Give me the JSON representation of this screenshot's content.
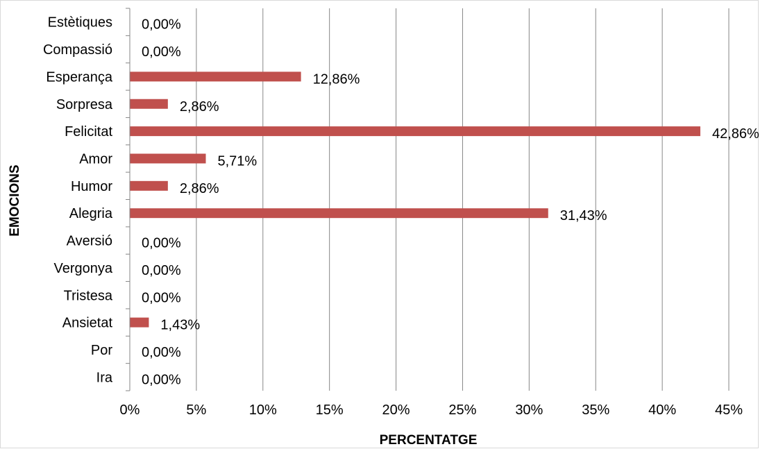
{
  "chart_data": {
    "type": "bar",
    "orientation": "horizontal",
    "categories": [
      "Estètiques",
      "Compassió",
      "Esperança",
      "Sorpresa",
      "Felicitat",
      "Amor",
      "Humor",
      "Alegria",
      "Aversió",
      "Vergonya",
      "Tristesa",
      "Ansietat",
      "Por",
      "Ira"
    ],
    "values": [
      0,
      0,
      12.86,
      2.86,
      42.86,
      5.71,
      2.86,
      31.43,
      0,
      0,
      0,
      1.43,
      0,
      0
    ],
    "value_labels": [
      "0,00%",
      "0,00%",
      "12,86%",
      "2,86%",
      "42,86%",
      "5,71%",
      "2,86%",
      "31,43%",
      "0,00%",
      "0,00%",
      "0,00%",
      "1,43%",
      "0,00%",
      "0,00%"
    ],
    "x_ticks": [
      0,
      5,
      10,
      15,
      20,
      25,
      30,
      35,
      40,
      45
    ],
    "x_tick_labels": [
      "0%",
      "5%",
      "10%",
      "15%",
      "20%",
      "25%",
      "30%",
      "35%",
      "40%",
      "45%"
    ],
    "xlim": [
      0,
      45
    ],
    "xlabel": "PERCENTATGE",
    "ylabel": "EMOCIONS",
    "title": "",
    "grid": "vertical",
    "legend": "none",
    "bar_color": "#c0504d",
    "grid_color": "#868686"
  }
}
